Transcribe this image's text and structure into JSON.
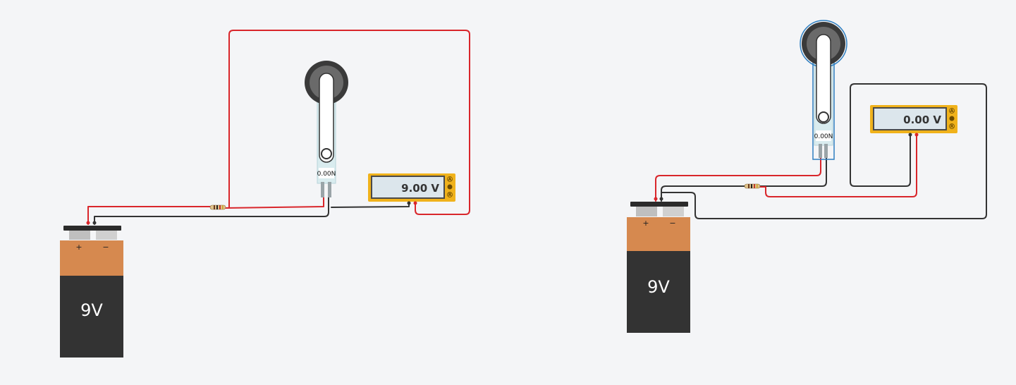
{
  "colors": {
    "background": "#f4f5f7",
    "wire_red": "#d9262b",
    "wire_black": "#333333",
    "battery_top": "#d6894f",
    "battery_body": "#333333",
    "multimeter_frame": "#f0b21b",
    "multimeter_screen": "#dce6ec",
    "sensor_dark": "#3a3a3a",
    "sensor_strip": "#d9ecef"
  },
  "circuits": [
    {
      "battery": {
        "label": "9V",
        "plus": "+",
        "minus": "−"
      },
      "sensor": {
        "force": "0.00N"
      },
      "multimeter": {
        "reading": "9.00 V",
        "modes": [
          "A",
          "V",
          "R"
        ]
      }
    },
    {
      "battery": {
        "label": "9V",
        "plus": "+",
        "minus": "−"
      },
      "sensor": {
        "force": "0.00N"
      },
      "multimeter": {
        "reading": "0.00 V",
        "modes": [
          "A",
          "V",
          "R"
        ]
      }
    }
  ]
}
